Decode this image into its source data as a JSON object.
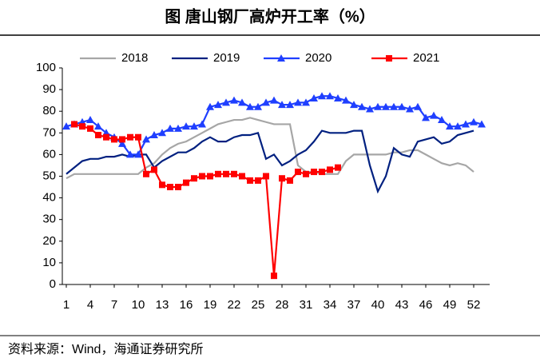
{
  "chart_data": {
    "type": "line",
    "title": "图  唐山钢厂高炉开工率（%）",
    "source": "资料来源：Wind，海通证券研究所",
    "x": [
      1,
      2,
      3,
      4,
      5,
      6,
      7,
      8,
      9,
      10,
      11,
      12,
      13,
      14,
      15,
      16,
      17,
      18,
      19,
      20,
      21,
      22,
      23,
      24,
      25,
      26,
      27,
      28,
      29,
      30,
      31,
      32,
      33,
      34,
      35,
      36,
      37,
      38,
      39,
      40,
      41,
      42,
      43,
      44,
      45,
      46,
      47,
      48,
      49,
      50,
      51,
      52,
      53
    ],
    "xlim": [
      0.5,
      54
    ],
    "xticks": [
      1,
      4,
      7,
      10,
      13,
      16,
      19,
      22,
      25,
      28,
      31,
      34,
      37,
      40,
      43,
      46,
      49,
      52
    ],
    "ylim": [
      0,
      100
    ],
    "yticks": [
      0,
      10,
      20,
      30,
      40,
      50,
      60,
      70,
      80,
      90,
      100
    ],
    "grid": false,
    "legend": "top",
    "series": [
      {
        "name": "2018",
        "color": "#a6a6a6",
        "marker": "none",
        "values": [
          49,
          51,
          51,
          51,
          51,
          51,
          51,
          51,
          51,
          51,
          54,
          56,
          60,
          63,
          65,
          66,
          68,
          70,
          72,
          74,
          75,
          76,
          76,
          77,
          76,
          75,
          74,
          74,
          74,
          55,
          52,
          52,
          51,
          51,
          51,
          57,
          60,
          60,
          60,
          60,
          60,
          61,
          61,
          62,
          62,
          60,
          58,
          56,
          55,
          56,
          55,
          52,
          null
        ]
      },
      {
        "name": "2019",
        "color": "#002080",
        "marker": "none",
        "values": [
          51,
          54,
          57,
          58,
          58,
          59,
          59,
          60,
          59,
          60,
          60,
          54,
          57,
          59,
          61,
          61,
          63,
          66,
          68,
          66,
          66,
          68,
          69,
          69,
          70,
          58,
          60,
          55,
          57,
          60,
          62,
          66,
          71,
          70,
          70,
          70,
          71,
          71,
          55,
          43,
          50,
          63,
          60,
          59,
          66,
          67,
          68,
          65,
          66,
          69,
          70,
          71,
          null
        ]
      },
      {
        "name": "2020",
        "color": "#1f3fff",
        "marker": "triangle",
        "values": [
          73,
          74,
          75,
          76,
          73,
          70,
          68,
          65,
          60,
          60,
          67,
          69,
          70,
          72,
          72,
          73,
          73,
          74,
          82,
          83,
          84,
          85,
          84,
          82,
          82,
          84,
          85,
          83,
          83,
          84,
          84,
          86,
          87,
          87,
          86,
          85,
          83,
          82,
          81,
          82,
          82,
          82,
          82,
          81,
          82,
          77,
          78,
          76,
          73,
          73,
          74,
          75,
          74
        ]
      },
      {
        "name": "2021",
        "color": "#ff0000",
        "marker": "square",
        "values": [
          null,
          74,
          73,
          72,
          69,
          68,
          67,
          67,
          68,
          68,
          51,
          53,
          46,
          45,
          45,
          47,
          49,
          50,
          50,
          51,
          51,
          51,
          50,
          48,
          48,
          50,
          4,
          49,
          48,
          52,
          51,
          52,
          52,
          53,
          54,
          null,
          null,
          null,
          null,
          null,
          null,
          null,
          null,
          null,
          null,
          null,
          null,
          null,
          null,
          null,
          null,
          null,
          null
        ]
      }
    ]
  }
}
